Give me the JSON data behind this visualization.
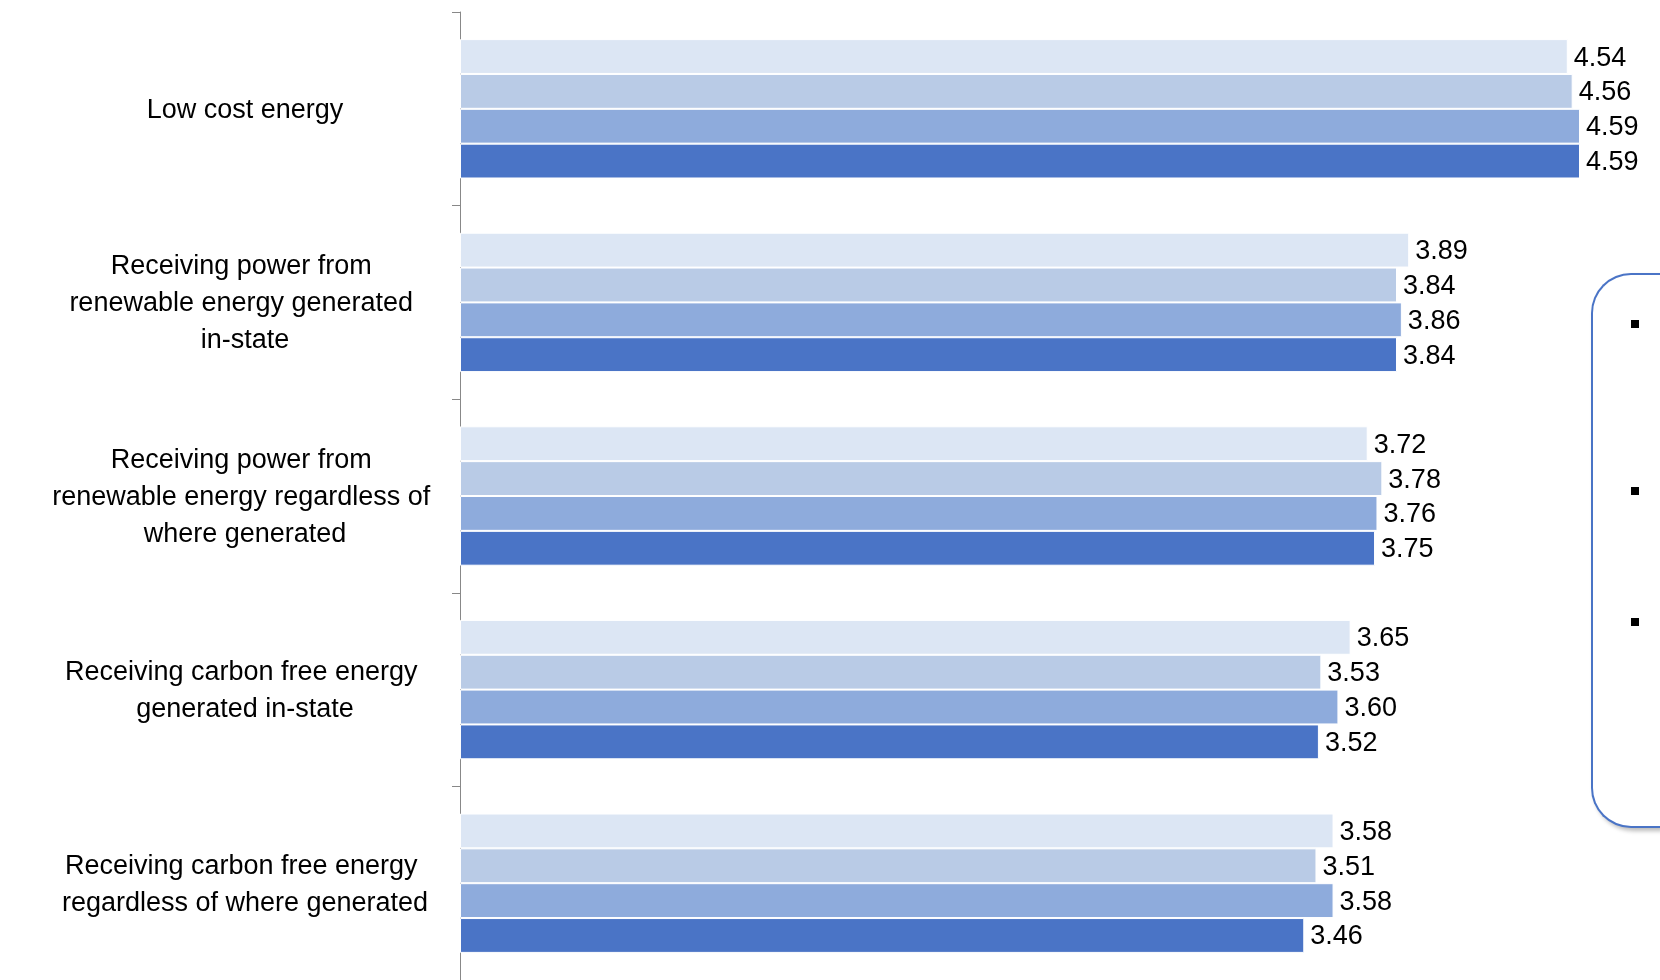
{
  "chart_data": {
    "type": "bar",
    "orientation": "horizontal",
    "data_labels": true,
    "categories": [
      "Low cost energy",
      "Receiving power from renewable energy generated in-state",
      "Receiving power from renewable energy regardless of where generated",
      "Receiving carbon free energy generated in-state",
      "Receiving carbon free energy regardless of where generated"
    ],
    "series": [
      {
        "color": "#dce6f4",
        "values": [
          4.54,
          3.89,
          3.72,
          3.65,
          3.58
        ]
      },
      {
        "color": "#b9cbe6",
        "values": [
          4.56,
          3.84,
          3.78,
          3.53,
          3.51
        ]
      },
      {
        "color": "#8eabdc",
        "values": [
          4.59,
          3.86,
          3.76,
          3.6,
          3.58
        ],
        "value_labels": [
          "4.59",
          "3.86",
          "3.76",
          "3.60",
          "3.58"
        ]
      },
      {
        "color": "#4a74c6",
        "values": [
          4.59,
          3.84,
          3.75,
          3.52,
          3.46
        ]
      }
    ]
  }
}
